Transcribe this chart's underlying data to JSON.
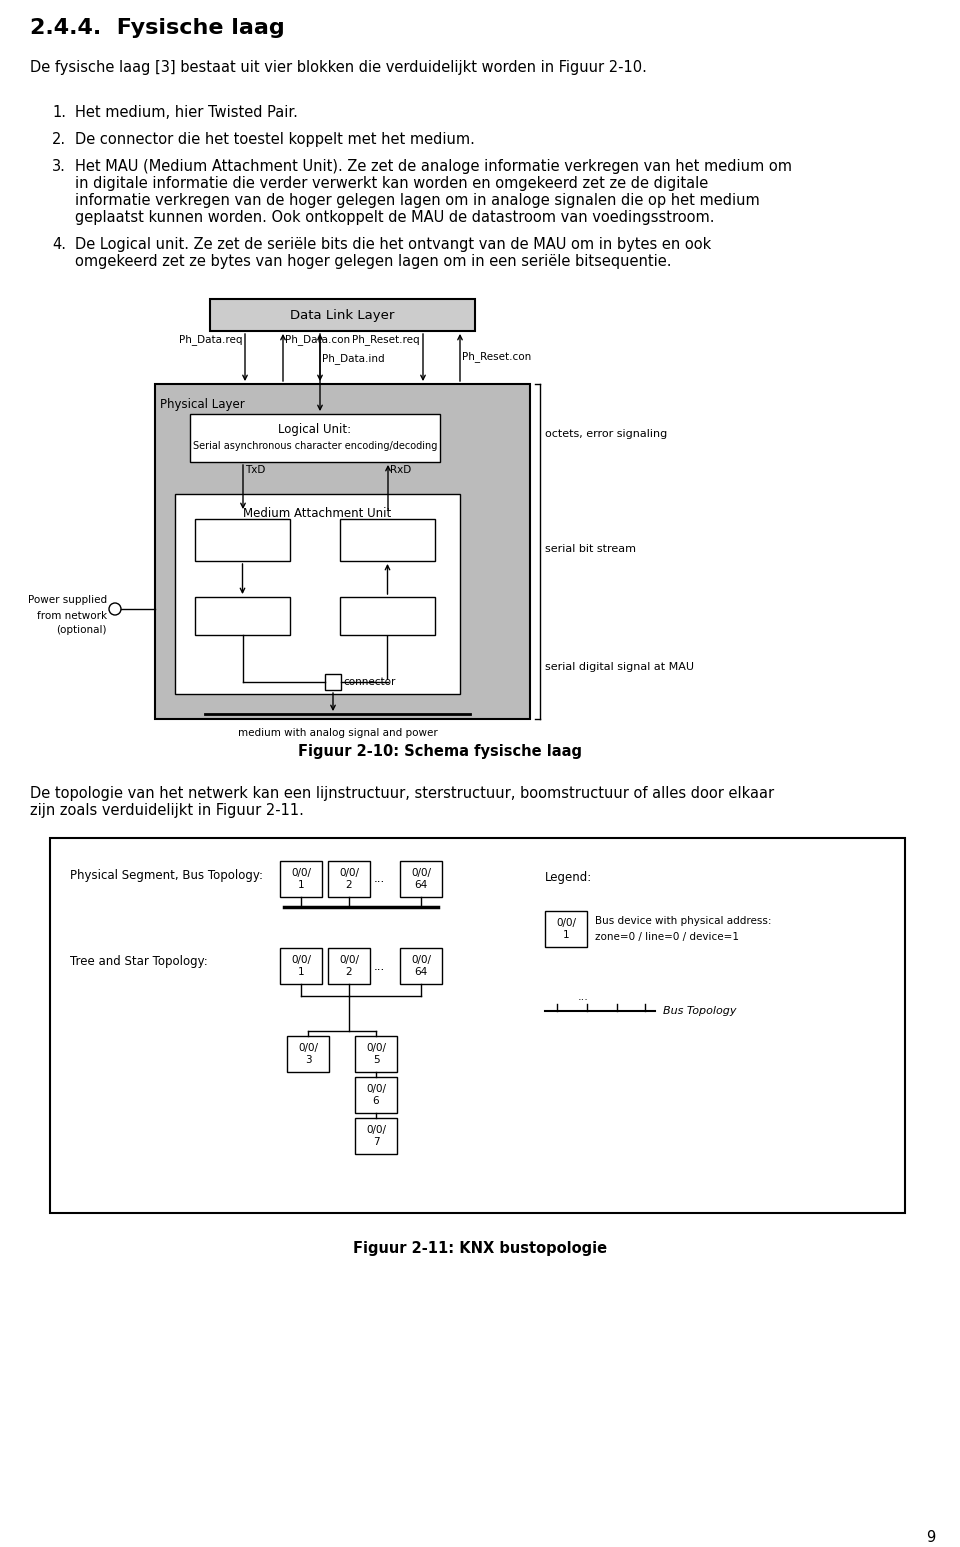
{
  "title": "2.4.4.  Fysische laag",
  "bg_color": "#ffffff",
  "text_color": "#000000",
  "page_number": "9",
  "para1": "De fysische laag [3] bestaat uit vier blokken die verduidelijkt worden in Figuur 2-10.",
  "list_items": [
    "Het medium, hier Twisted Pair.",
    "De connector die het toestel koppelt met het medium.",
    "Het MAU (Medium Attachment Unit). Ze zet de analoge informatie verkregen van het medium om in digitale informatie die verder verwerkt kan worden en omgekeerd zet ze de digitale informatie verkregen van de hoger gelegen lagen om in analoge signalen die op het medium geplaatst kunnen worden. Ook ontkoppelt de MAU de datastroom van voedingsstroom.",
    "De Logical unit. Ze zet de seriële bits die het ontvangt van de MAU om in bytes en ook omgekeerd zet ze bytes van hoger gelegen lagen om in een seriële bitsequentie."
  ],
  "fig1_caption": "Figuur 2-10: Schema fysische laag",
  "para2": "De topologie van het netwerk kan een lijnstructuur, sterstructuur, boomstructuur of alles door elkaar zijn zoals verduidelijkt in Figuur 2-11.",
  "fig2_caption": "Figuur 2-11: KNX bustopologie"
}
